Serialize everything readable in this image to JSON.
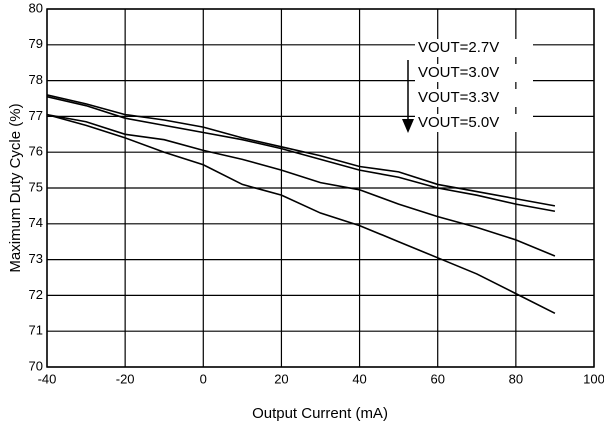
{
  "chart_data": {
    "type": "line",
    "x_label": "Output Current (mA)",
    "y_label": "Maximum Duty Cycle (%)",
    "x": [
      -40,
      -30,
      -20,
      -10,
      0,
      10,
      20,
      30,
      40,
      50,
      60,
      70,
      80,
      90
    ],
    "series": [
      {
        "name": "VOUT=2.7V",
        "color": "#000000",
        "values": [
          77.6,
          77.35,
          77.05,
          76.9,
          76.7,
          76.4,
          76.15,
          75.9,
          75.6,
          75.45,
          75.1,
          74.9,
          74.7,
          74.5
        ]
      },
      {
        "name": "VOUT=3.0V",
        "color": "#000000",
        "values": [
          77.55,
          77.3,
          76.95,
          76.75,
          76.55,
          76.35,
          76.1,
          75.8,
          75.5,
          75.3,
          75.0,
          74.8,
          74.55,
          74.35
        ]
      },
      {
        "name": "VOUT=3.3V",
        "color": "#000000",
        "values": [
          77.05,
          76.85,
          76.5,
          76.35,
          76.05,
          75.8,
          75.5,
          75.15,
          74.95,
          74.55,
          74.2,
          73.9,
          73.55,
          73.1
        ]
      },
      {
        "name": "VOUT=5.0V",
        "color": "#000000",
        "values": [
          77.05,
          76.75,
          76.4,
          76.0,
          75.65,
          75.1,
          74.8,
          74.3,
          73.95,
          73.5,
          73.05,
          72.6,
          72.05,
          71.5
        ]
      }
    ],
    "xlim": [
      -40,
      100
    ],
    "xticks": [
      -40,
      -20,
      0,
      20,
      40,
      60,
      80,
      100
    ],
    "ylim": [
      70,
      80
    ],
    "yticks": [
      70,
      71,
      72,
      73,
      74,
      75,
      76,
      77,
      78,
      79,
      80
    ],
    "grid": true,
    "legend": "upper right"
  }
}
